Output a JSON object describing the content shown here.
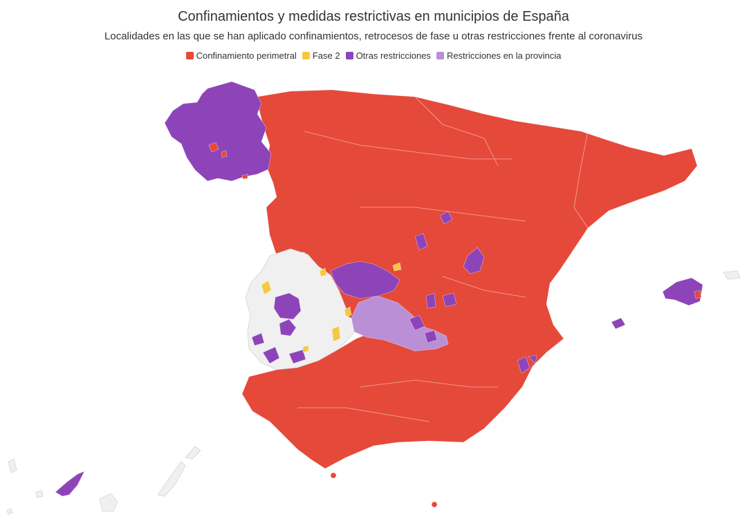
{
  "title": "Confinamientos y medidas restrictivas en municipios de España",
  "subtitle": "Localidades en las que se han aplicado confinamientos, retrocesos de fase u otras restricciones frente al coronavirus",
  "legend": [
    {
      "label": "Confinamiento perimetral",
      "color": "#e5493a"
    },
    {
      "label": "Fase 2",
      "color": "#f6c841"
    },
    {
      "label": "Otras restricciones",
      "color": "#8e44b9"
    },
    {
      "label": "Restricciones en la provincia",
      "color": "#bb8fd6"
    }
  ],
  "colors": {
    "none": "#f0f0f0",
    "confinamiento": "#e5493a",
    "fase2": "#f6c841",
    "otras": "#8e44b9",
    "provincia": "#bb8fd6"
  }
}
